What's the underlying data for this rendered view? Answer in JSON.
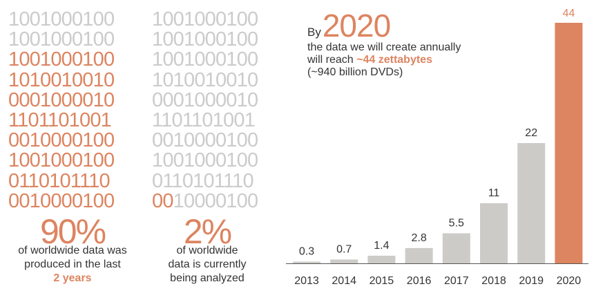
{
  "colors": {
    "accent": "#dd8460",
    "bar_default": "#cdcbc8",
    "binary_gray": "#cbcbcb",
    "text": "#333333",
    "axis": "#555555"
  },
  "binary_left": {
    "lines": [
      "1001000100",
      "1001000100",
      "1001000100",
      "1010010010",
      "0001000010",
      "1101101001",
      "0010000100",
      "1001000100",
      "0110101110",
      "0010000100"
    ],
    "highlight_from_line": 2
  },
  "binary_right": {
    "lines": [
      "1001000100",
      "1001000100",
      "1001000100",
      "1010010010",
      "0001000010",
      "1101101001",
      "0010000100",
      "1001000100",
      "0110101110",
      "0010000100"
    ],
    "last_line_highlight_chars": 2
  },
  "stat_left": {
    "percent": "90%",
    "caption_line1": "of worldwide data was",
    "caption_line2": "produced in the last",
    "caption_bold": "2 years"
  },
  "stat_right": {
    "percent": "2%",
    "caption_line1": "of worldwide",
    "caption_line2": "data is currently",
    "caption_line3": "being analyzed"
  },
  "headline": {
    "by": "By",
    "year": "2020",
    "line1": "the data we will create annually",
    "line2_prefix": "will reach",
    "line2_bold": "~44 zettabytes",
    "line3": "(~940 billion DVDs)"
  },
  "chart_data": {
    "type": "bar",
    "title": "",
    "xlabel": "",
    "ylabel": "",
    "categories": [
      "2013",
      "2014",
      "2015",
      "2016",
      "2017",
      "2018",
      "2019",
      "2020"
    ],
    "values": [
      0.3,
      0.7,
      1.4,
      2.8,
      5.5,
      11,
      22,
      44
    ],
    "value_labels": [
      "0.3",
      "0.7",
      "1.4",
      "2.8",
      "5.5",
      "11",
      "22",
      "44"
    ],
    "highlight_category": "2020",
    "ylim": [
      0,
      44
    ],
    "grid": false,
    "legend": "none"
  }
}
